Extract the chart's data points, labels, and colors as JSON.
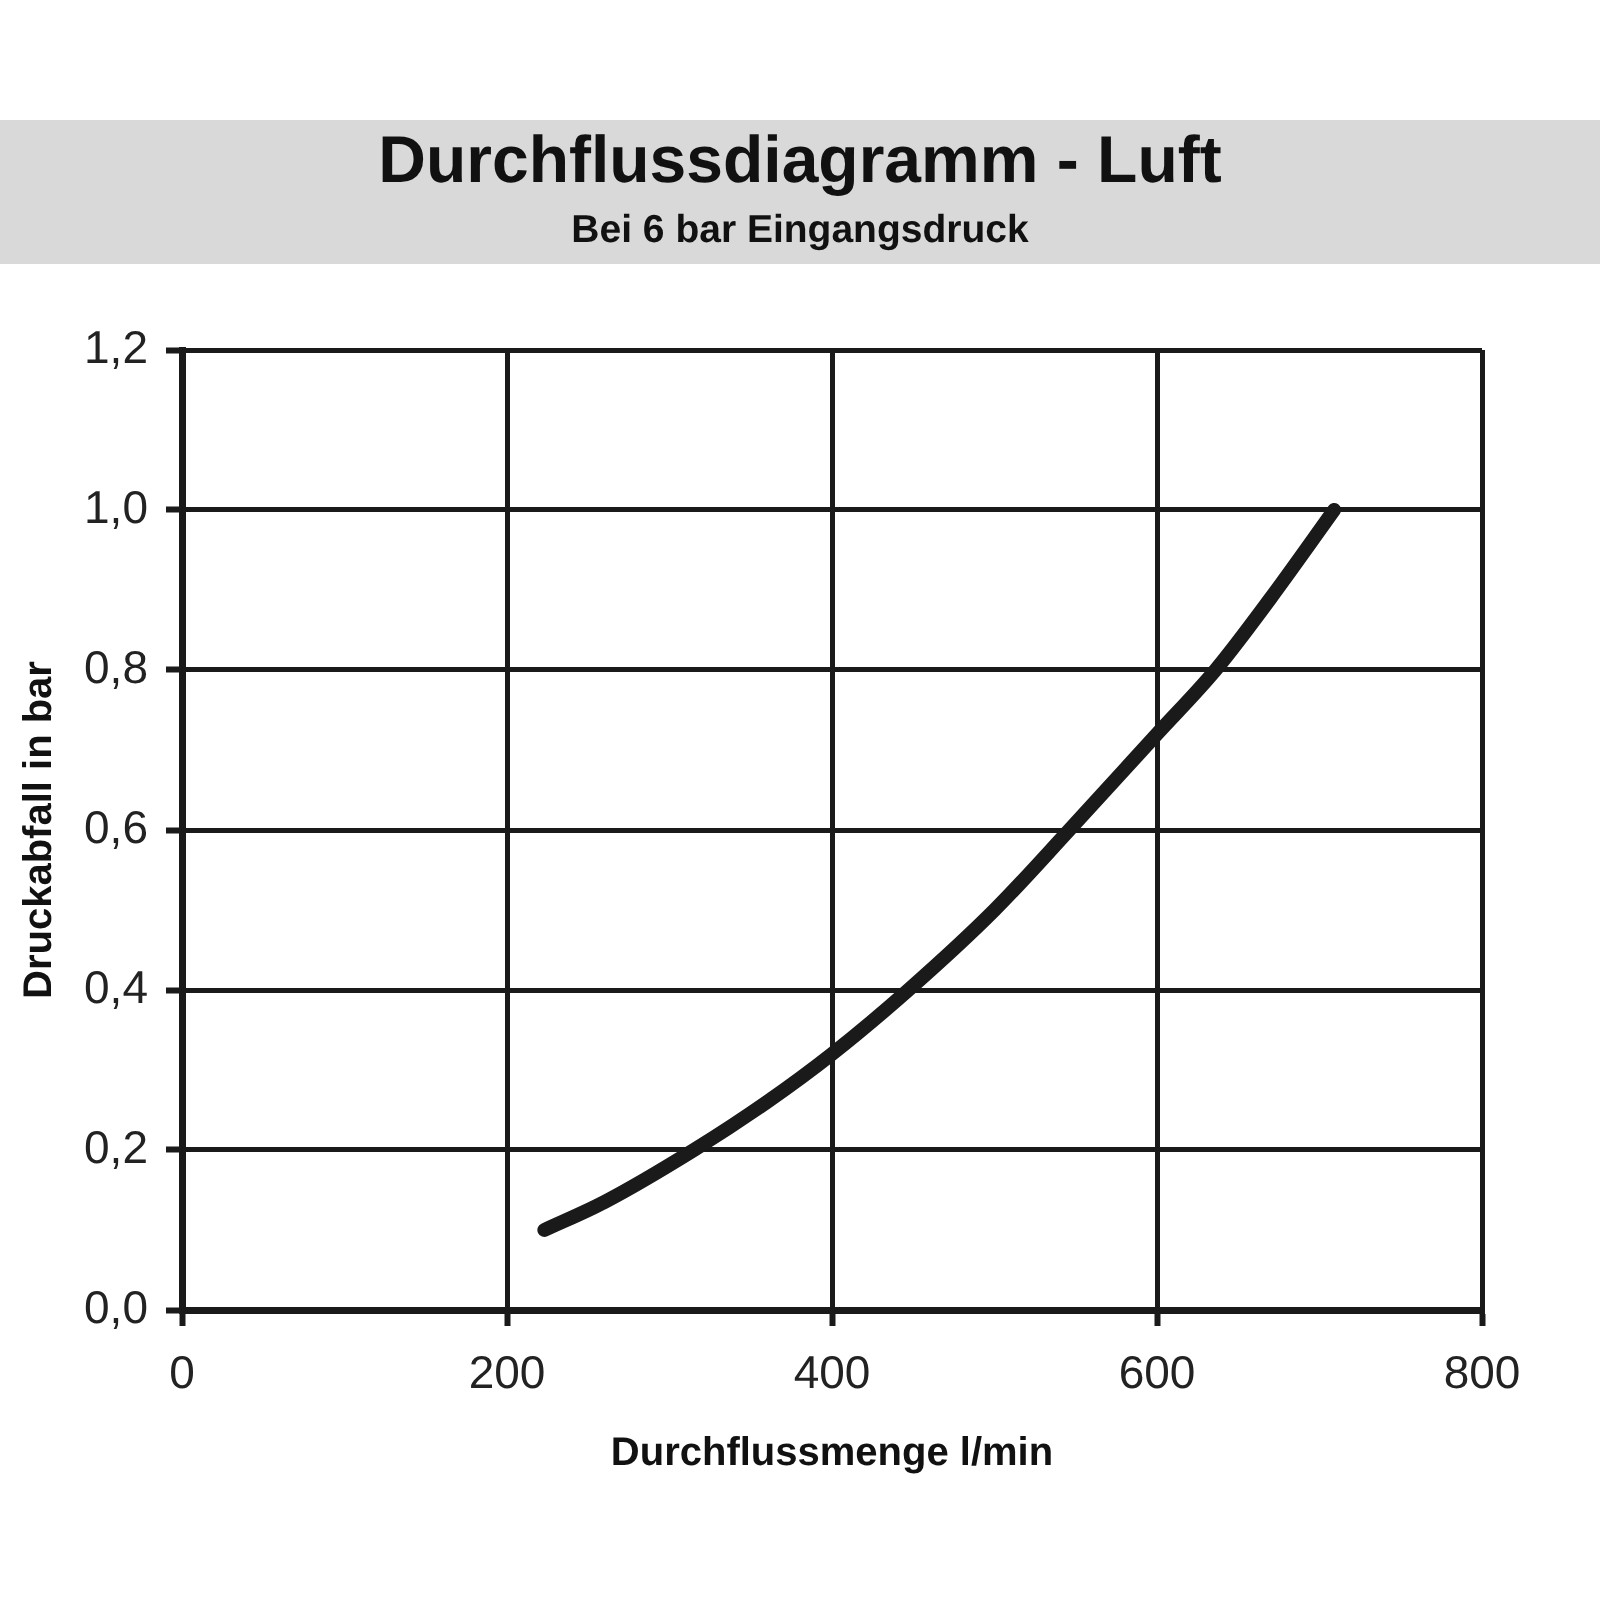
{
  "chart_data": {
    "type": "line",
    "title": "Durchflussdiagramm - Luft",
    "subtitle": "Bei 6 bar Eingangsdruck",
    "xlabel": "Durchflussmenge l/min",
    "ylabel": "Druckabfall in bar",
    "x": [
      223,
      260,
      315,
      360,
      400,
      447,
      500,
      546,
      600,
      636,
      670,
      709
    ],
    "values": [
      0.1,
      0.135,
      0.2,
      0.26,
      0.32,
      0.4,
      0.5,
      0.6,
      0.72,
      0.8,
      0.89,
      1.0
    ],
    "color": "#1a1a1a",
    "xlim": [
      0,
      800
    ],
    "xticks": [
      0,
      200,
      400,
      600,
      800
    ],
    "ylim": [
      0,
      1.2
    ],
    "yticks": [
      {
        "value": 0,
        "label": "0,0"
      },
      {
        "value": 0.2,
        "label": "0,2"
      },
      {
        "value": 0.4,
        "label": "0,4"
      },
      {
        "value": 0.6,
        "label": "0,6"
      },
      {
        "value": 0.8,
        "label": "0,8"
      },
      {
        "value": 1,
        "label": "1,0"
      },
      {
        "value": 1.2,
        "label": "1,2"
      }
    ],
    "grid": true
  }
}
